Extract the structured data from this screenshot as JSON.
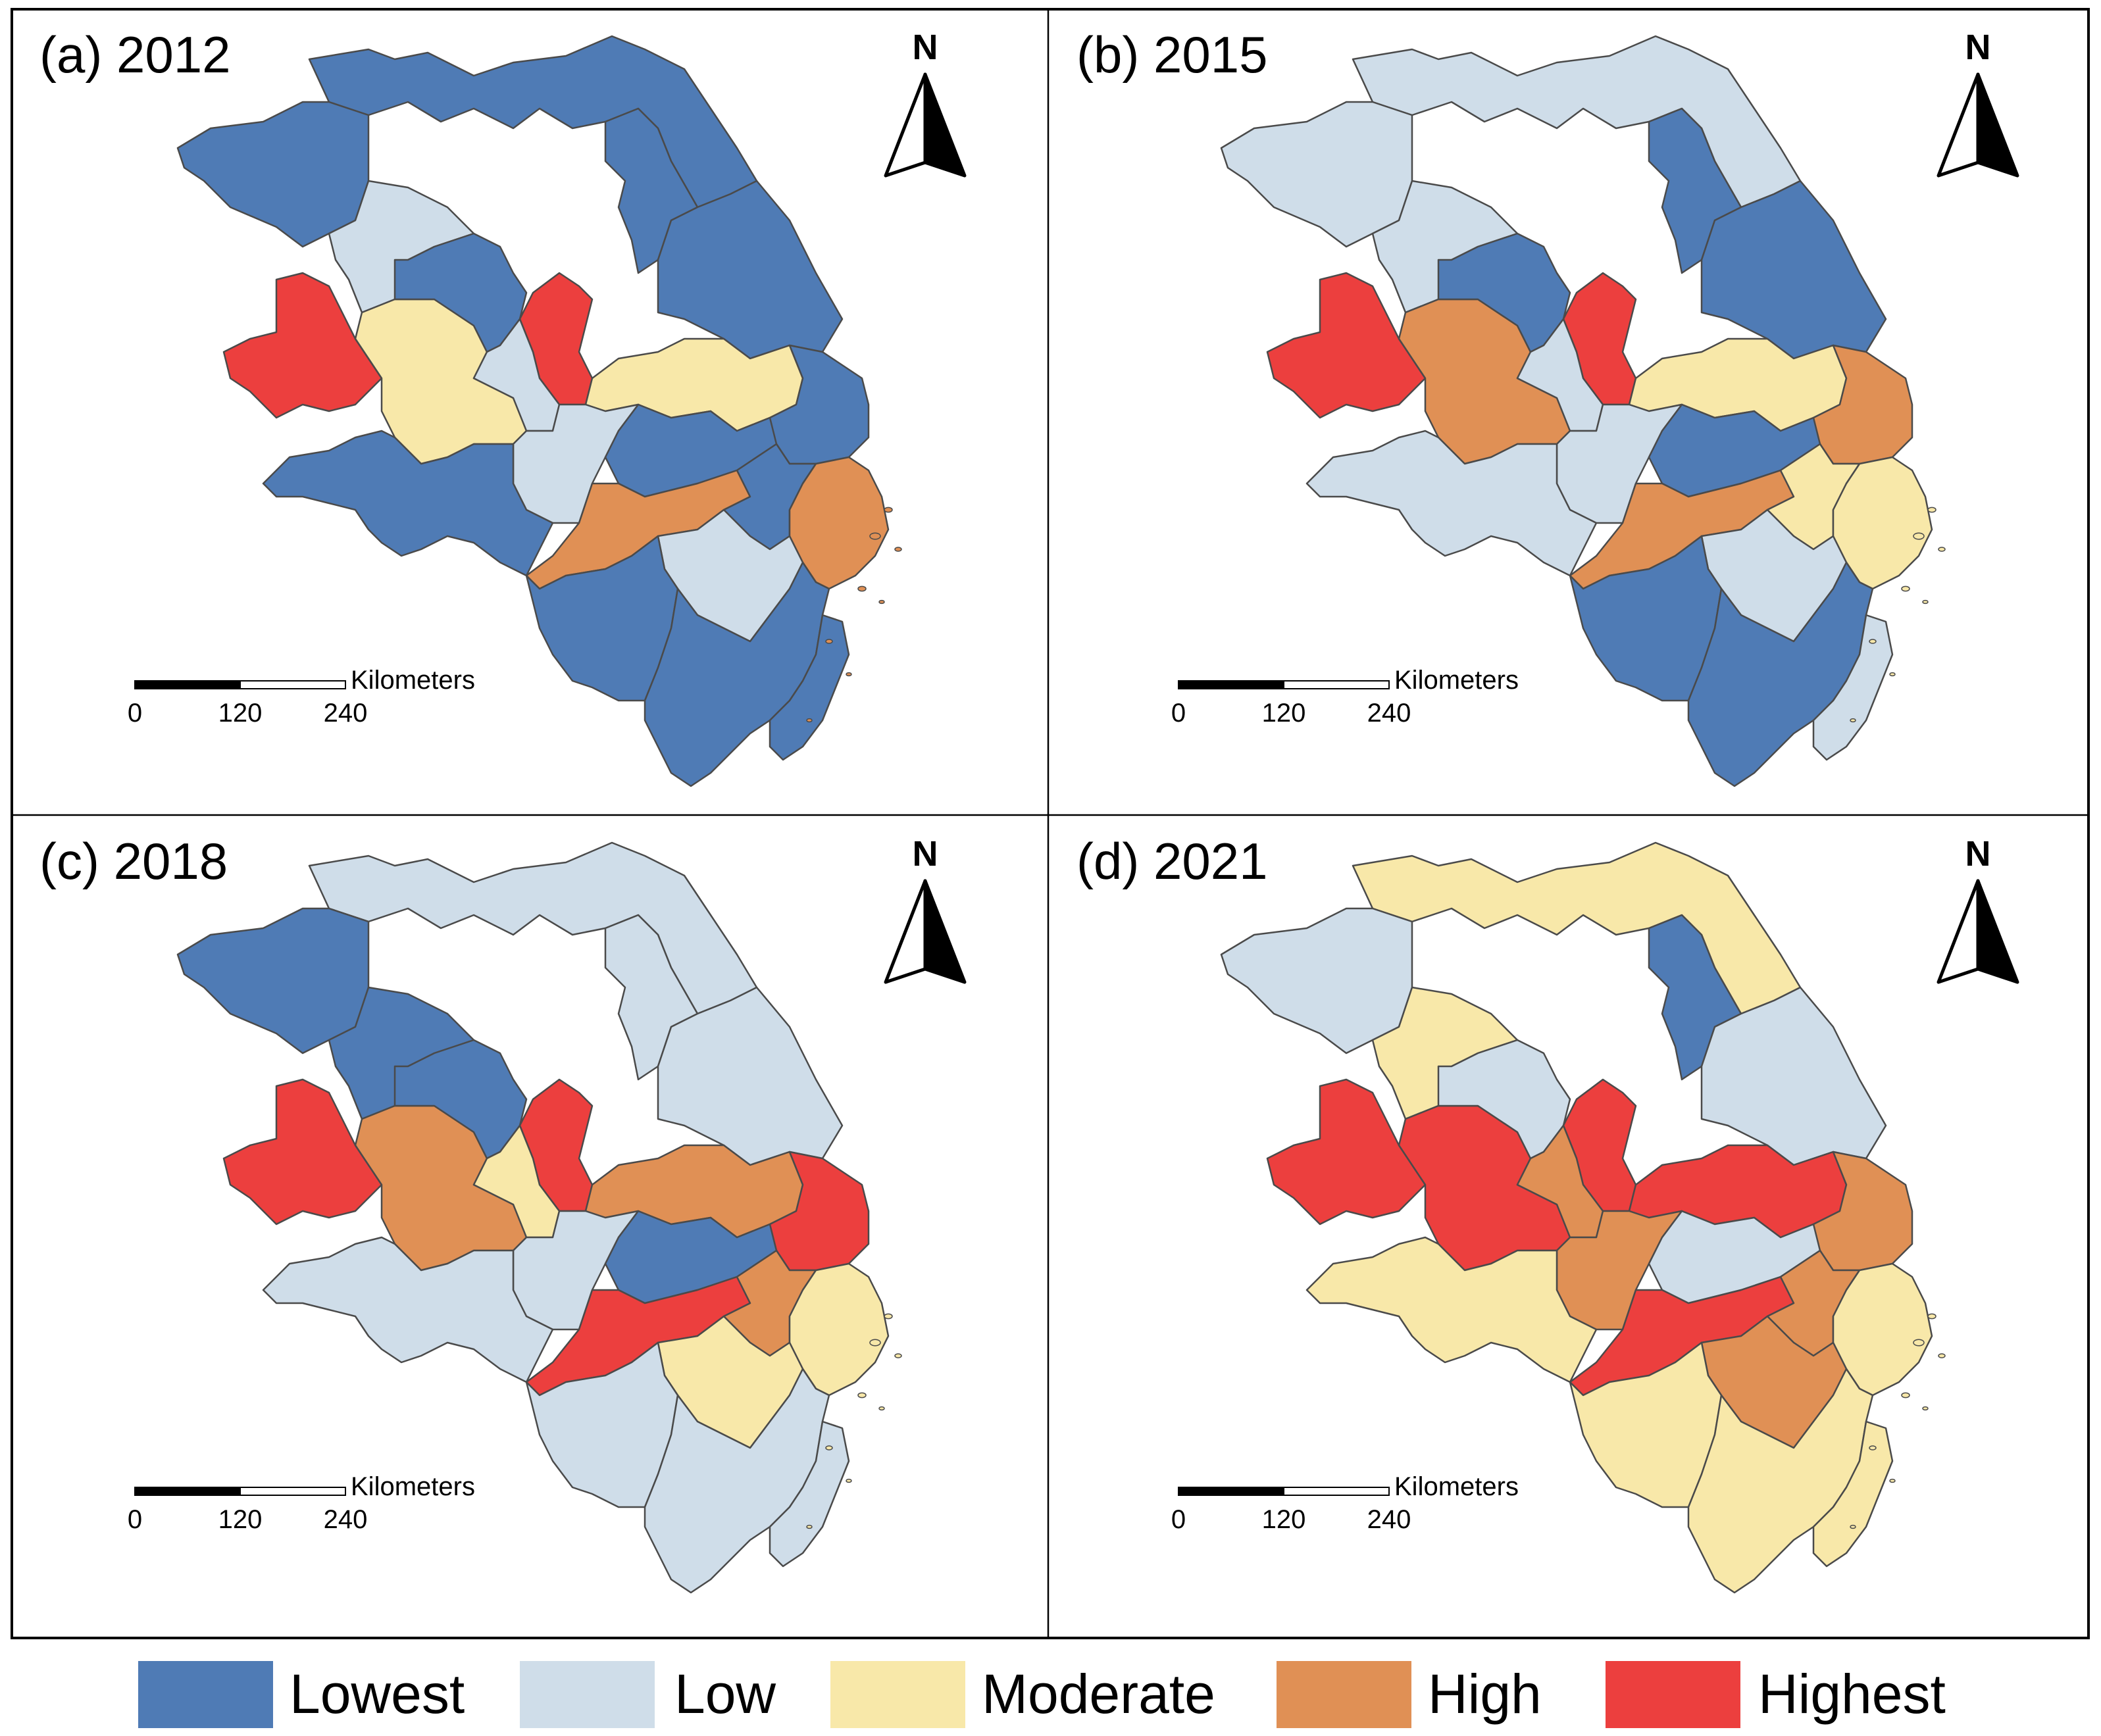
{
  "colors": {
    "lowest": "#4f7bb5",
    "low": "#cfdde9",
    "moderate": "#f8e8a9",
    "high": "#e09055",
    "highest": "#ec3f3e"
  },
  "panels": [
    {
      "id": "a",
      "title": "(a) 2012",
      "north_label": "N",
      "scale": {
        "unit": "Kilometers",
        "ticks": [
          "0",
          "120",
          "240"
        ]
      },
      "regions": [
        "lowest",
        "lowest",
        "lowest",
        "lowest",
        "low",
        "highest",
        "moderate",
        "lowest",
        "highest",
        "low",
        "moderate",
        "lowest",
        "low",
        "lowest",
        "high",
        "lowest",
        "high",
        "low",
        "lowest",
        "lowest",
        "lowest",
        "lowest"
      ]
    },
    {
      "id": "b",
      "title": "(b) 2015",
      "north_label": "N",
      "scale": {
        "unit": "Kilometers",
        "ticks": [
          "0",
          "120",
          "240"
        ]
      },
      "regions": [
        "low",
        "lowest",
        "lowest",
        "low",
        "low",
        "highest",
        "high",
        "lowest",
        "highest",
        "low",
        "moderate",
        "high",
        "low",
        "lowest",
        "high",
        "moderate",
        "moderate",
        "low",
        "low",
        "lowest",
        "lowest",
        "low"
      ]
    },
    {
      "id": "c",
      "title": "(c) 2018",
      "north_label": "N",
      "scale": {
        "unit": "Kilometers",
        "ticks": [
          "0",
          "120",
          "240"
        ]
      },
      "regions": [
        "low",
        "low",
        "low",
        "lowest",
        "lowest",
        "highest",
        "high",
        "lowest",
        "highest",
        "moderate",
        "high",
        "highest",
        "low",
        "lowest",
        "highest",
        "high",
        "moderate",
        "moderate",
        "low",
        "low",
        "low",
        "low"
      ]
    },
    {
      "id": "d",
      "title": "(d) 2021",
      "north_label": "N",
      "scale": {
        "unit": "Kilometers",
        "ticks": [
          "0",
          "120",
          "240"
        ]
      },
      "regions": [
        "moderate",
        "lowest",
        "low",
        "low",
        "moderate",
        "highest",
        "highest",
        "low",
        "highest",
        "high",
        "highest",
        "high",
        "high",
        "low",
        "highest",
        "high",
        "moderate",
        "high",
        "moderate",
        "moderate",
        "moderate",
        "moderate"
      ]
    }
  ],
  "legend": [
    {
      "label": "Lowest",
      "color_key": "lowest"
    },
    {
      "label": "Low",
      "color_key": "low"
    },
    {
      "label": "Moderate",
      "color_key": "moderate"
    },
    {
      "label": "High",
      "color_key": "high"
    },
    {
      "label": "Highest",
      "color_key": "highest"
    }
  ]
}
